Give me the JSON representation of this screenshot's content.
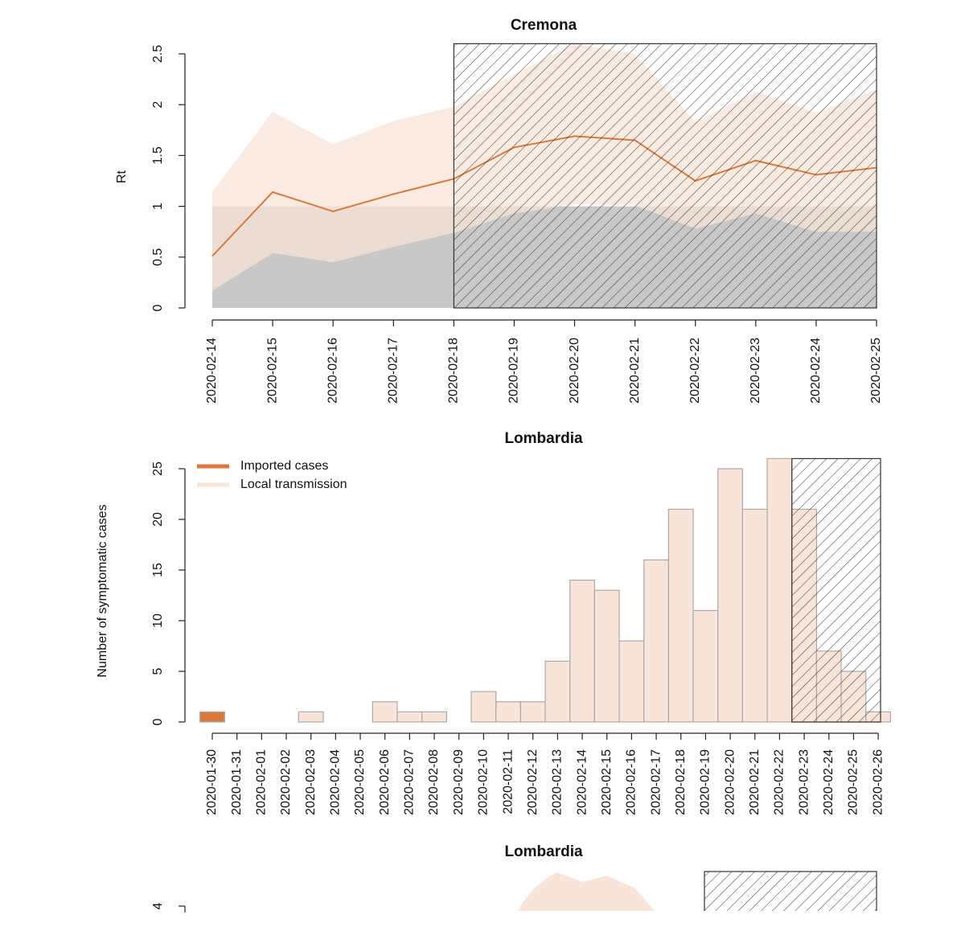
{
  "chart_data": [
    {
      "type": "band-line",
      "title": "Cremona",
      "ylabel": "Rt",
      "x": [
        "2020-02-14",
        "2020-02-15",
        "2020-02-16",
        "2020-02-17",
        "2020-02-18",
        "2020-02-19",
        "2020-02-20",
        "2020-02-21",
        "2020-02-22",
        "2020-02-23",
        "2020-02-24",
        "2020-02-25"
      ],
      "series": [
        {
          "color": "#d9793a",
          "values": [
            0.51,
            1.14,
            0.95,
            1.12,
            1.27,
            1.58,
            1.69,
            1.65,
            1.25,
            1.45,
            1.31,
            1.38
          ],
          "upper": [
            1.14,
            1.93,
            1.61,
            1.84,
            1.98,
            2.3,
            2.6,
            2.5,
            1.83,
            2.13,
            1.92,
            2.15
          ],
          "lower": [
            0.17,
            0.54,
            0.45,
            0.6,
            0.74,
            0.93,
            1.02,
            1.01,
            0.78,
            0.93,
            0.75,
            0.75
          ],
          "band_color": "#f8e4d8"
        }
      ],
      "threshold": 1,
      "threshold_color": "#c8c8c8",
      "hatched_from": "2020-02-18",
      "hatched_to": "2020-02-25",
      "ylim": [
        0,
        2.6
      ],
      "yticks": [
        0,
        0.5,
        1,
        1.5,
        2,
        2.5
      ]
    },
    {
      "type": "stacked-bar",
      "title": "Lombardia",
      "ylabel": "Number of symptomatic cases",
      "categories": [
        "2020-01-30",
        "2020-01-31",
        "2020-02-01",
        "2020-02-02",
        "2020-02-03",
        "2020-02-04",
        "2020-02-05",
        "2020-02-06",
        "2020-02-07",
        "2020-02-08",
        "2020-02-09",
        "2020-02-10",
        "2020-02-11",
        "2020-02-12",
        "2020-02-13",
        "2020-02-14",
        "2020-02-15",
        "2020-02-16",
        "2020-02-17",
        "2020-02-18",
        "2020-02-19",
        "2020-02-20",
        "2020-02-21",
        "2020-02-22",
        "2020-02-23",
        "2020-02-24",
        "2020-02-25",
        "2020-02-26"
      ],
      "series": [
        {
          "name": "Imported cases",
          "color": "#d9793a",
          "values": [
            1,
            0,
            0,
            0,
            0,
            0,
            0,
            0,
            0,
            0,
            0,
            0,
            0,
            0,
            0,
            0,
            0,
            0,
            0,
            0,
            0,
            0,
            0,
            0,
            0,
            0,
            0,
            0
          ]
        },
        {
          "name": "Local transmission",
          "color": "#f8e4d8",
          "values": [
            0,
            0,
            0,
            0,
            1,
            0,
            0,
            2,
            1,
            1,
            0,
            3,
            2,
            2,
            6,
            14,
            13,
            8,
            16,
            21,
            11,
            25,
            21,
            26,
            21,
            7,
            5,
            1
          ]
        }
      ],
      "hatched_from": "2020-02-23",
      "legend": "top-left",
      "ylim": [
        0,
        26
      ],
      "yticks": [
        0,
        5,
        10,
        15,
        20,
        25
      ]
    },
    {
      "type": "band-line",
      "title": "Lombardia",
      "yticks": [
        4
      ]
    }
  ]
}
